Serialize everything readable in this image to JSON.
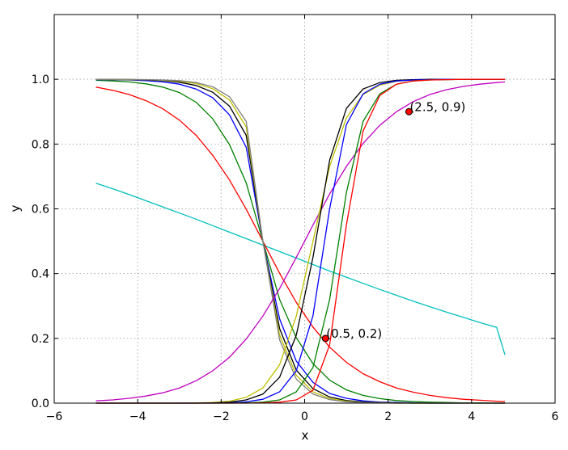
{
  "chart_data": {
    "type": "line",
    "title": "",
    "xlabel": "x",
    "ylabel": "y",
    "xlim": [
      -6,
      6
    ],
    "ylim": [
      0,
      1.2
    ],
    "xticks": [
      -6,
      -4,
      -2,
      0,
      2,
      4,
      6
    ],
    "yticks": [
      0.0,
      0.2,
      0.4,
      0.6,
      0.8,
      1.0
    ],
    "xtick_labels": [
      "−6",
      "−4",
      "−2",
      "0",
      "2",
      "4",
      "6"
    ],
    "ytick_labels": [
      "0.0",
      "0.2",
      "0.4",
      "0.6",
      "0.8",
      "1.0"
    ],
    "grid": true,
    "x": [
      -5.0,
      -4.6,
      -4.2,
      -3.8,
      -3.4,
      -3.0,
      -2.6,
      -2.2,
      -1.8,
      -1.4,
      -1.0,
      -0.6,
      -0.2,
      0.2,
      0.6,
      1.0,
      1.4,
      1.8,
      2.2,
      2.6,
      3.0,
      3.4,
      3.8,
      4.2,
      4.6,
      4.8
    ],
    "series": [
      {
        "color": "#00bfbf",
        "values": [
          0.679,
          0.662,
          0.644,
          0.625,
          0.606,
          0.587,
          0.568,
          0.548,
          0.528,
          0.508,
          0.488,
          0.468,
          0.448,
          0.428,
          0.408,
          0.389,
          0.37,
          0.351,
          0.333,
          0.315,
          0.298,
          0.281,
          0.265,
          0.249,
          0.234,
          0.149
        ]
      },
      {
        "color": "#ff0000",
        "values": [
          0.976,
          0.966,
          0.953,
          0.934,
          0.909,
          0.874,
          0.827,
          0.765,
          0.689,
          0.599,
          0.5,
          0.401,
          0.311,
          0.235,
          0.173,
          0.126,
          0.091,
          0.066,
          0.047,
          0.034,
          0.024,
          0.017,
          0.012,
          0.009,
          0.006,
          0.005
        ]
      },
      {
        "color": "#008000",
        "values": [
          0.997,
          0.995,
          0.992,
          0.986,
          0.976,
          0.959,
          0.929,
          0.878,
          0.798,
          0.68,
          0.5,
          0.32,
          0.202,
          0.122,
          0.071,
          0.041,
          0.024,
          0.014,
          0.008,
          0.005,
          0.003,
          0.002,
          0.001,
          0.001,
          0.0,
          0.0
        ]
      },
      {
        "color": "#0000ff",
        "values": [
          0.999,
          0.999,
          0.998,
          0.996,
          0.992,
          0.985,
          0.97,
          0.943,
          0.89,
          0.79,
          0.5,
          0.26,
          0.13,
          0.064,
          0.03,
          0.015,
          0.007,
          0.003,
          0.002,
          0.001,
          0.0,
          0.0,
          0.0,
          0.0,
          0.0,
          0.0
        ]
      },
      {
        "color": "#000000",
        "values": [
          1.0,
          0.999,
          0.999,
          0.998,
          0.996,
          0.991,
          0.981,
          0.96,
          0.917,
          0.827,
          0.5,
          0.23,
          0.102,
          0.045,
          0.019,
          0.008,
          0.004,
          0.002,
          0.001,
          0.0,
          0.0,
          0.0,
          0.0,
          0.0,
          0.0,
          0.0
        ]
      },
      {
        "color": "#bfbf00",
        "values": [
          1.0,
          1.0,
          0.999,
          0.999,
          0.997,
          0.994,
          0.987,
          0.971,
          0.936,
          0.853,
          0.5,
          0.21,
          0.086,
          0.035,
          0.014,
          0.006,
          0.002,
          0.001,
          0.0,
          0.0,
          0.0,
          0.0,
          0.0,
          0.0,
          0.0,
          0.0
        ]
      },
      {
        "color": "#7f7f7f",
        "values": [
          1.0,
          1.0,
          1.0,
          0.999,
          0.998,
          0.996,
          0.99,
          0.977,
          0.946,
          0.87,
          0.5,
          0.195,
          0.074,
          0.028,
          0.011,
          0.004,
          0.002,
          0.001,
          0.0,
          0.0,
          0.0,
          0.0,
          0.0,
          0.0,
          0.0,
          0.0
        ]
      },
      {
        "color": "#bf00bf",
        "values": [
          0.007,
          0.01,
          0.015,
          0.022,
          0.032,
          0.047,
          0.069,
          0.1,
          0.142,
          0.198,
          0.269,
          0.354,
          0.45,
          0.55,
          0.646,
          0.731,
          0.802,
          0.858,
          0.9,
          0.931,
          0.953,
          0.968,
          0.978,
          0.985,
          0.99,
          0.992
        ]
      },
      {
        "color": "#bfbf00",
        "values": [
          0.0,
          0.0,
          0.0,
          0.0,
          0.0,
          0.0,
          0.001,
          0.002,
          0.006,
          0.018,
          0.047,
          0.119,
          0.269,
          0.5,
          0.731,
          0.881,
          0.953,
          0.982,
          0.994,
          0.998,
          0.999,
          1.0,
          1.0,
          1.0,
          1.0,
          1.0
        ]
      },
      {
        "color": "#000000",
        "values": [
          0.0,
          0.0,
          0.0,
          0.0,
          0.0,
          0.0,
          0.0,
          0.001,
          0.003,
          0.01,
          0.028,
          0.08,
          0.21,
          0.45,
          0.75,
          0.91,
          0.97,
          0.99,
          0.997,
          0.999,
          1.0,
          1.0,
          1.0,
          1.0,
          1.0,
          1.0
        ]
      },
      {
        "color": "#0000ff",
        "values": [
          0.0,
          0.0,
          0.0,
          0.0,
          0.0,
          0.0,
          0.0,
          0.0,
          0.001,
          0.004,
          0.012,
          0.035,
          0.1,
          0.27,
          0.6,
          0.86,
          0.955,
          0.985,
          0.995,
          0.998,
          0.999,
          1.0,
          1.0,
          1.0,
          1.0,
          1.0
        ]
      },
      {
        "color": "#008000",
        "values": [
          0.0,
          0.0,
          0.0,
          0.0,
          0.0,
          0.0,
          0.0,
          0.0,
          0.0,
          0.001,
          0.003,
          0.01,
          0.035,
          0.11,
          0.32,
          0.65,
          0.87,
          0.955,
          0.985,
          0.995,
          0.998,
          0.999,
          1.0,
          1.0,
          1.0,
          1.0
        ]
      },
      {
        "color": "#ff0000",
        "values": [
          0.0,
          0.0,
          0.0,
          0.0,
          0.0,
          0.0,
          0.0,
          0.0,
          0.0,
          0.0,
          0.001,
          0.003,
          0.01,
          0.04,
          0.18,
          0.55,
          0.84,
          0.95,
          0.985,
          0.995,
          0.998,
          0.999,
          1.0,
          1.0,
          1.0,
          1.0
        ]
      }
    ],
    "annotations": [
      {
        "x": 0.5,
        "y": 0.2,
        "text": "(0.5, 0.2)",
        "color": "#ff0000"
      },
      {
        "x": 2.5,
        "y": 0.9,
        "text": "(2.5, 0.9)",
        "color": "#ff0000"
      }
    ]
  }
}
